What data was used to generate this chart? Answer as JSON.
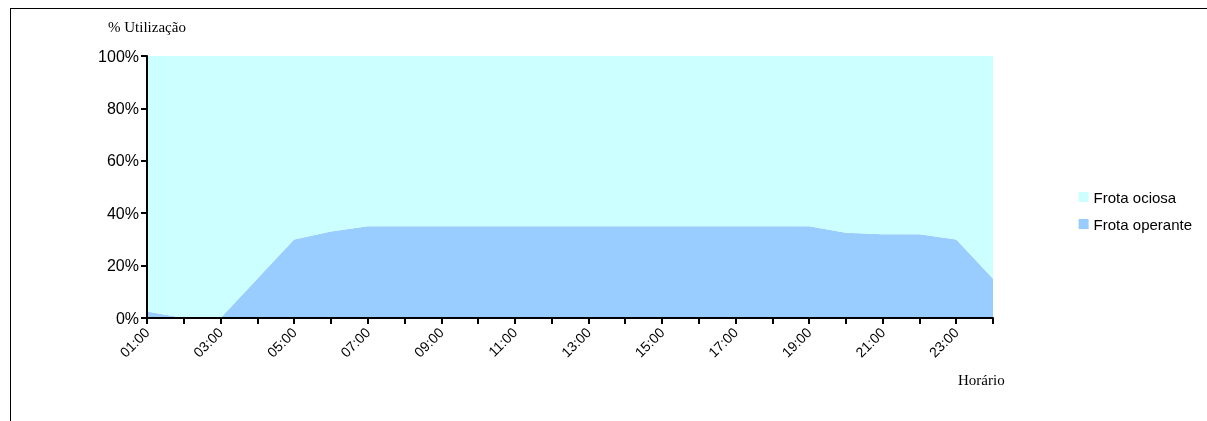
{
  "chart_data": {
    "type": "area",
    "stacked": true,
    "xlabel": "Horário",
    "ylabel": "% Utilização",
    "categories": [
      "01:00",
      null,
      "03:00",
      null,
      "05:00",
      null,
      "07:00",
      null,
      "09:00",
      null,
      "11:00",
      null,
      "13:00",
      null,
      "15:00",
      null,
      "17:00",
      null,
      "19:00",
      null,
      "21:00",
      null,
      "23:00",
      null
    ],
    "series": [
      {
        "name": "Frota operante",
        "color": "#99ccff",
        "values": [
          2.5,
          0,
          0,
          15,
          30,
          33,
          35,
          35,
          35,
          35,
          35,
          35,
          35,
          35,
          35,
          35,
          35,
          35,
          35,
          32.5,
          32,
          32,
          30,
          15
        ]
      },
      {
        "name": "Frota ociosa",
        "color": "#ccffff",
        "values": [
          97.5,
          100,
          100,
          85,
          70,
          67,
          65,
          65,
          65,
          65,
          65,
          65,
          65,
          65,
          65,
          65,
          65,
          65,
          65,
          67.5,
          68,
          68,
          70,
          85
        ]
      }
    ],
    "ylim": [
      0,
      100
    ],
    "yticks": [
      {
        "value": 0,
        "label": "0%"
      },
      {
        "value": 20,
        "label": "20%"
      },
      {
        "value": 40,
        "label": "40%"
      },
      {
        "value": 60,
        "label": "60%"
      },
      {
        "value": 80,
        "label": "80%"
      },
      {
        "value": 100,
        "label": "100%"
      }
    ],
    "grid": false,
    "legend": "right"
  }
}
